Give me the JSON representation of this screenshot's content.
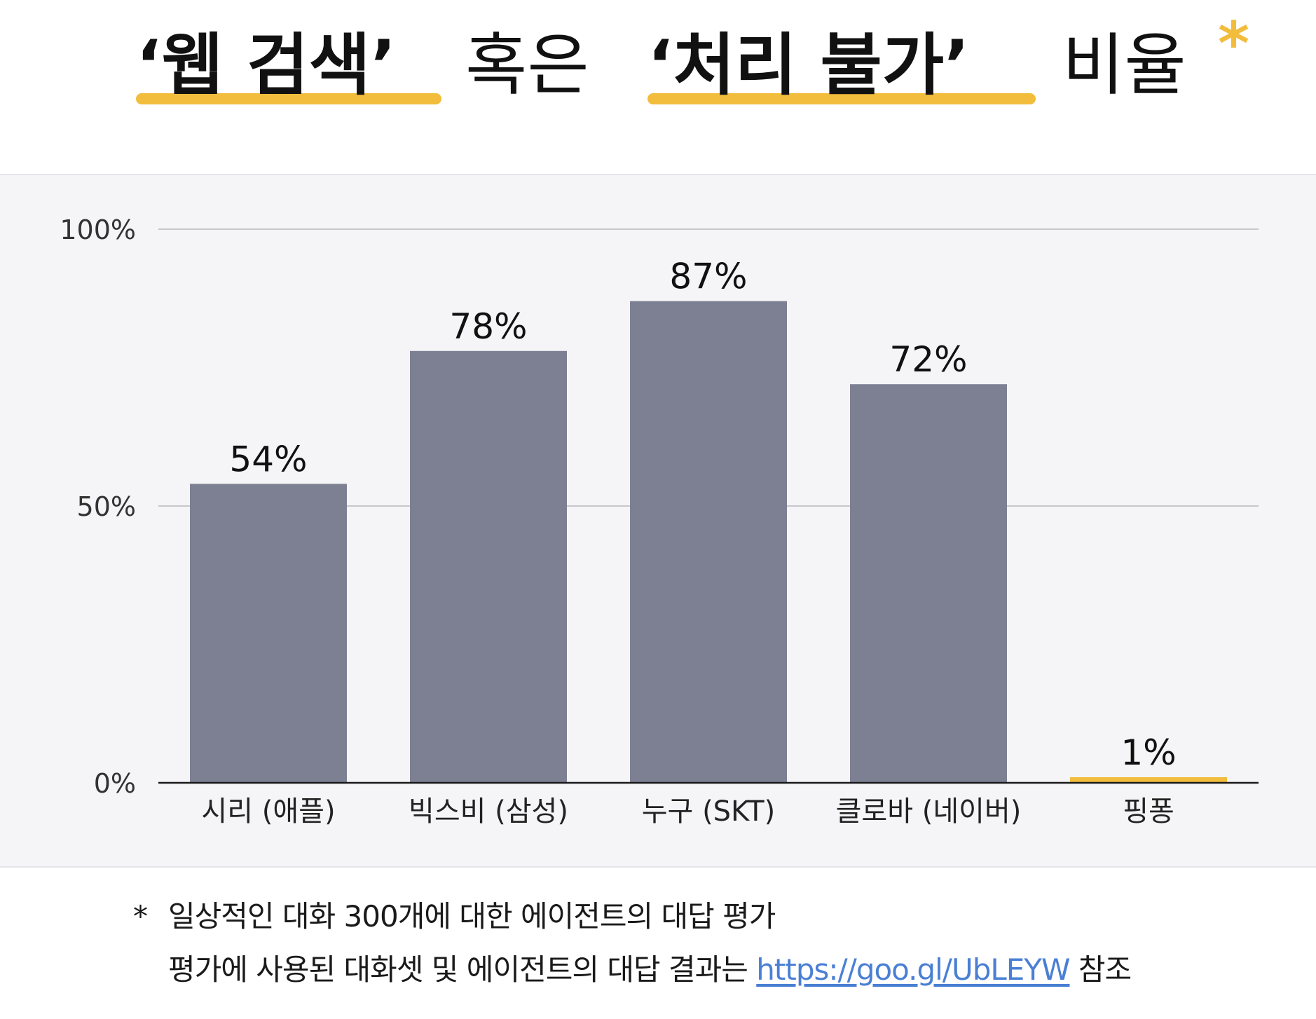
{
  "title": {
    "part1": "‘웹 검색’",
    "part2": "혹은",
    "part3": "‘처리 불가’",
    "part4": "비율",
    "asterisk": "*"
  },
  "colors": {
    "accent": "#f2bd3c",
    "bar": "#7d8093",
    "highlight_bar": "#f2bd3c",
    "panel_bg": "#f5f5f7",
    "grid": "#c8c8cc",
    "link": "#4a7fd4"
  },
  "chart_data": {
    "type": "bar",
    "title": "",
    "xlabel": "",
    "ylabel": "",
    "ylim": [
      0,
      100
    ],
    "yticks": [
      {
        "value": 0,
        "label": "0%"
      },
      {
        "value": 50,
        "label": "50%"
      },
      {
        "value": 100,
        "label": "100%"
      }
    ],
    "categories": [
      "시리 (애플)",
      "빅스비 (삼성)",
      "누구 (SKT)",
      "클로바 (네이버)",
      "핑퐁"
    ],
    "values": [
      54,
      78,
      87,
      72,
      1
    ],
    "value_labels": [
      "54%",
      "78%",
      "87%",
      "72%",
      "1%"
    ],
    "highlight_index": 4,
    "grid": true,
    "legend": "none"
  },
  "footnote": {
    "marker": "*",
    "line1": "일상적인 대화 300개에 대한 에이전트의 대답 평가",
    "line2_prefix": "평가에 사용된 대화셋 및 에이전트의 대답 결과는 ",
    "link_text": "https://goo.gl/UbLEYW",
    "line2_suffix": " 참조"
  }
}
